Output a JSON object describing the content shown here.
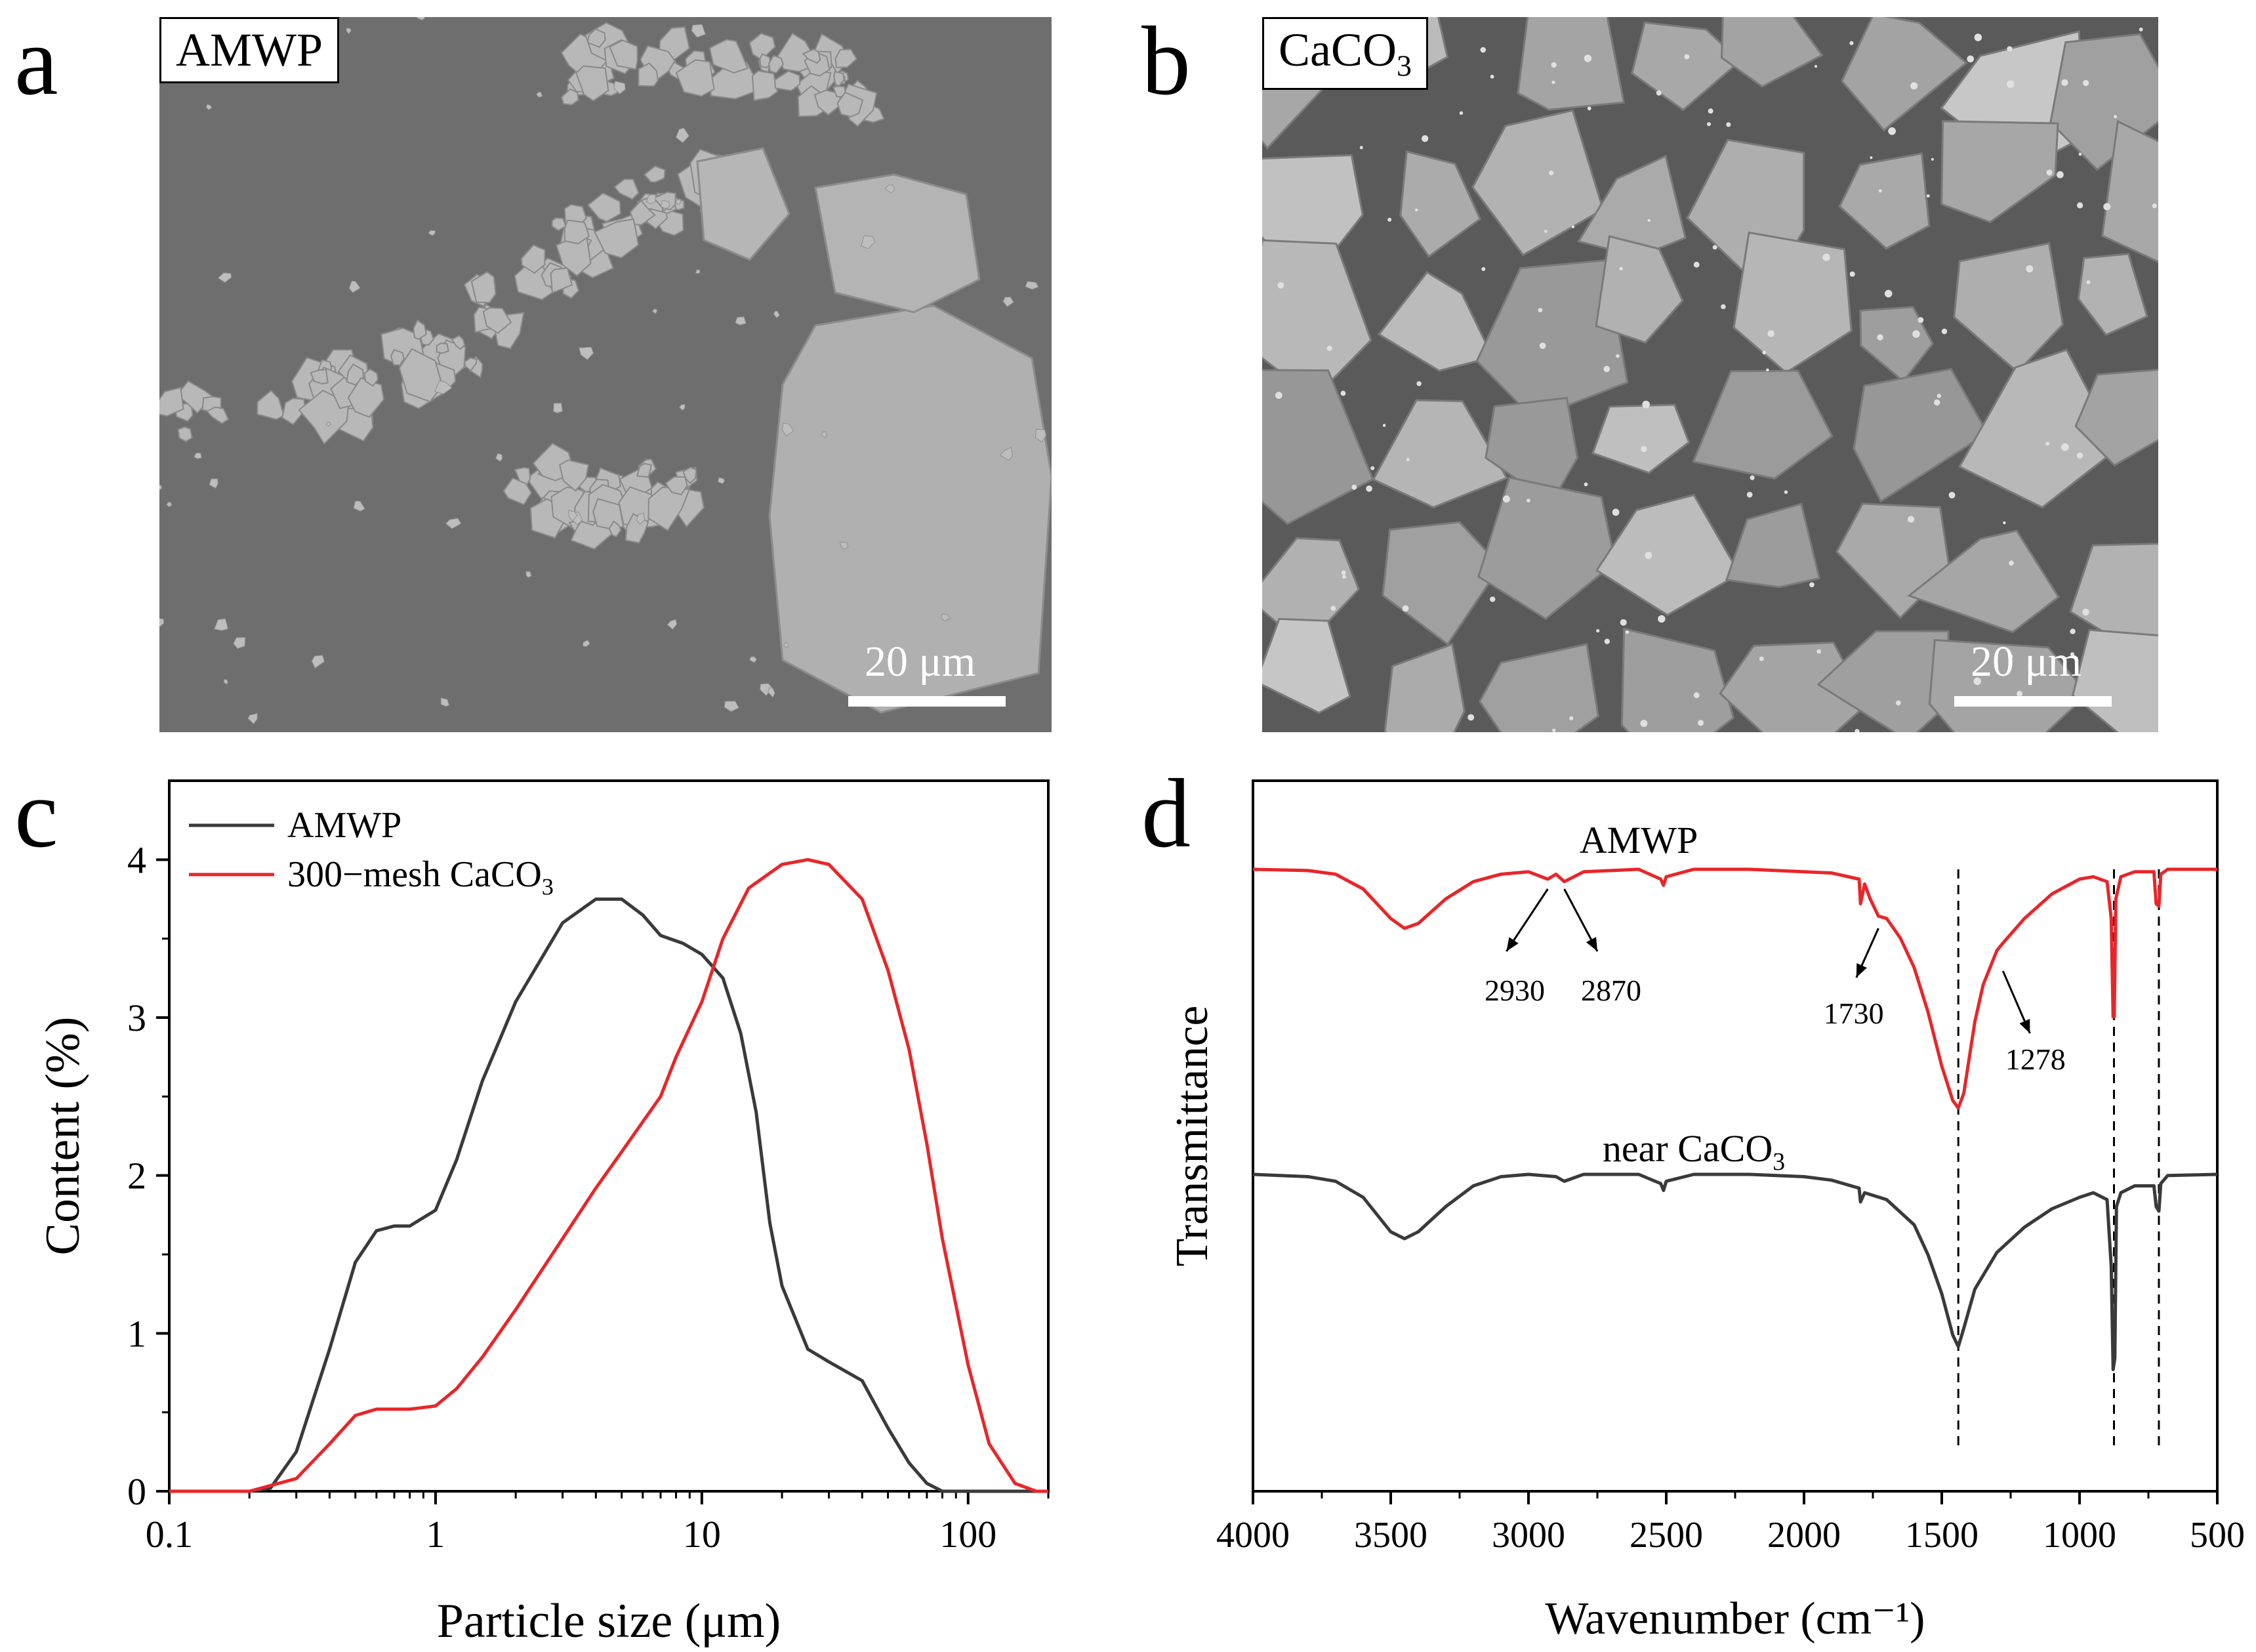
{
  "panels": {
    "a": {
      "letter": "a",
      "label": "AMWP",
      "scalebar": "20 μm"
    },
    "b": {
      "letter": "b",
      "label_main": "CaCO",
      "label_sub": "3",
      "scalebar": "20 μm"
    },
    "c": {
      "letter": "c"
    },
    "d": {
      "letter": "d"
    }
  },
  "colors": {
    "amwp": "#3a3a3a",
    "caco3": "#e8262a",
    "sem_bg": "#6e6e6e",
    "particle": "#b4b4b4"
  },
  "chart_data": [
    {
      "id": "c",
      "type": "line",
      "xlabel": "Particle size (μm)",
      "ylabel": "Content (%)",
      "xscale": "log",
      "xlim": [
        0.1,
        200
      ],
      "ylim": [
        0,
        4.5
      ],
      "xticks": [
        {
          "v": 0.1,
          "label": "0.1"
        },
        {
          "v": 1,
          "label": "1"
        },
        {
          "v": 10,
          "label": "10"
        },
        {
          "v": 100,
          "label": "100"
        }
      ],
      "yticks": [
        0,
        1,
        2,
        3,
        4
      ],
      "legend_position": "top-left",
      "series": [
        {
          "name": "AMWP",
          "color": "#3a3a3a",
          "points": [
            [
              0.1,
              0
            ],
            [
              0.2,
              0
            ],
            [
              0.24,
              0.02
            ],
            [
              0.3,
              0.25
            ],
            [
              0.4,
              0.9
            ],
            [
              0.5,
              1.45
            ],
            [
              0.6,
              1.65
            ],
            [
              0.7,
              1.68
            ],
            [
              0.8,
              1.68
            ],
            [
              1.0,
              1.78
            ],
            [
              1.2,
              2.1
            ],
            [
              1.5,
              2.6
            ],
            [
              2.0,
              3.1
            ],
            [
              3.0,
              3.6
            ],
            [
              4.0,
              3.75
            ],
            [
              5.0,
              3.75
            ],
            [
              6.0,
              3.65
            ],
            [
              7.0,
              3.52
            ],
            [
              8.5,
              3.47
            ],
            [
              10,
              3.4
            ],
            [
              12,
              3.25
            ],
            [
              14,
              2.9
            ],
            [
              16,
              2.4
            ],
            [
              18,
              1.7
            ],
            [
              20,
              1.3
            ],
            [
              25,
              0.9
            ],
            [
              30,
              0.82
            ],
            [
              40,
              0.7
            ],
            [
              50,
              0.4
            ],
            [
              60,
              0.18
            ],
            [
              70,
              0.05
            ],
            [
              80,
              0
            ],
            [
              200,
              0
            ]
          ]
        },
        {
          "name": "300−mesh CaCO",
          "name_sub": "3",
          "color": "#e8262a",
          "points": [
            [
              0.1,
              0
            ],
            [
              0.2,
              0
            ],
            [
              0.3,
              0.08
            ],
            [
              0.4,
              0.3
            ],
            [
              0.5,
              0.48
            ],
            [
              0.6,
              0.52
            ],
            [
              0.7,
              0.52
            ],
            [
              0.8,
              0.52
            ],
            [
              1.0,
              0.54
            ],
            [
              1.2,
              0.65
            ],
            [
              1.5,
              0.85
            ],
            [
              2.0,
              1.15
            ],
            [
              3.0,
              1.6
            ],
            [
              4.0,
              1.92
            ],
            [
              5.0,
              2.15
            ],
            [
              7.0,
              2.5
            ],
            [
              8.0,
              2.75
            ],
            [
              10,
              3.1
            ],
            [
              12,
              3.5
            ],
            [
              15,
              3.82
            ],
            [
              20,
              3.97
            ],
            [
              25,
              4.0
            ],
            [
              30,
              3.97
            ],
            [
              40,
              3.75
            ],
            [
              50,
              3.3
            ],
            [
              60,
              2.8
            ],
            [
              70,
              2.2
            ],
            [
              80,
              1.6
            ],
            [
              100,
              0.8
            ],
            [
              120,
              0.3
            ],
            [
              150,
              0.05
            ],
            [
              180,
              0
            ],
            [
              200,
              0
            ]
          ]
        }
      ]
    },
    {
      "id": "d",
      "type": "line",
      "xlabel": "Wavenumber (cm⁻¹)",
      "ylabel": "Transmittance",
      "xlim": [
        4000,
        500
      ],
      "xticks": [
        4000,
        3500,
        3000,
        2500,
        2000,
        1500,
        1000,
        500
      ],
      "series": [
        {
          "name": "AMWP",
          "color": "#e8262a",
          "points": [
            [
              4000,
              1.0
            ],
            [
              3800,
              0.995
            ],
            [
              3700,
              0.98
            ],
            [
              3600,
              0.92
            ],
            [
              3500,
              0.8
            ],
            [
              3450,
              0.76
            ],
            [
              3400,
              0.78
            ],
            [
              3300,
              0.88
            ],
            [
              3200,
              0.95
            ],
            [
              3100,
              0.98
            ],
            [
              3000,
              0.99
            ],
            [
              2930,
              0.96
            ],
            [
              2900,
              0.98
            ],
            [
              2870,
              0.95
            ],
            [
              2800,
              0.99
            ],
            [
              2600,
              1.0
            ],
            [
              2520,
              0.96
            ],
            [
              2510,
              0.935
            ],
            [
              2500,
              0.97
            ],
            [
              2400,
              1.0
            ],
            [
              2200,
              1.0
            ],
            [
              2000,
              0.99
            ],
            [
              1900,
              0.985
            ],
            [
              1800,
              0.96
            ],
            [
              1795,
              0.86
            ],
            [
              1780,
              0.94
            ],
            [
              1760,
              0.88
            ],
            [
              1730,
              0.81
            ],
            [
              1700,
              0.8
            ],
            [
              1650,
              0.72
            ],
            [
              1600,
              0.6
            ],
            [
              1550,
              0.42
            ],
            [
              1500,
              0.2
            ],
            [
              1460,
              0.06
            ],
            [
              1440,
              0.03
            ],
            [
              1420,
              0.09
            ],
            [
              1380,
              0.38
            ],
            [
              1350,
              0.53
            ],
            [
              1300,
              0.67
            ],
            [
              1278,
              0.7
            ],
            [
              1200,
              0.8
            ],
            [
              1100,
              0.9
            ],
            [
              1000,
              0.96
            ],
            [
              950,
              0.97
            ],
            [
              900,
              0.95
            ],
            [
              885,
              0.8
            ],
            [
              878,
              0.4
            ],
            [
              874,
              0.4
            ],
            [
              868,
              0.88
            ],
            [
              850,
              0.97
            ],
            [
              800,
              0.99
            ],
            [
              730,
              0.99
            ],
            [
              722,
              0.86
            ],
            [
              712,
              0.85
            ],
            [
              705,
              0.98
            ],
            [
              680,
              1.0
            ],
            [
              500,
              1.0
            ]
          ]
        },
        {
          "name": "near CaCO",
          "name_sub": "3",
          "color": "#3a3a3a",
          "points": [
            [
              4000,
              1.0
            ],
            [
              3800,
              0.99
            ],
            [
              3700,
              0.97
            ],
            [
              3600,
              0.9
            ],
            [
              3500,
              0.75
            ],
            [
              3450,
              0.72
            ],
            [
              3400,
              0.75
            ],
            [
              3300,
              0.86
            ],
            [
              3200,
              0.95
            ],
            [
              3100,
              0.99
            ],
            [
              3000,
              1.0
            ],
            [
              2900,
              0.99
            ],
            [
              2870,
              0.97
            ],
            [
              2800,
              1.0
            ],
            [
              2600,
              1.0
            ],
            [
              2520,
              0.96
            ],
            [
              2510,
              0.93
            ],
            [
              2500,
              0.97
            ],
            [
              2400,
              1.0
            ],
            [
              2200,
              1.0
            ],
            [
              2000,
              0.99
            ],
            [
              1900,
              0.975
            ],
            [
              1800,
              0.94
            ],
            [
              1795,
              0.88
            ],
            [
              1780,
              0.92
            ],
            [
              1700,
              0.89
            ],
            [
              1600,
              0.78
            ],
            [
              1550,
              0.65
            ],
            [
              1500,
              0.48
            ],
            [
              1460,
              0.3
            ],
            [
              1440,
              0.25
            ],
            [
              1420,
              0.33
            ],
            [
              1380,
              0.5
            ],
            [
              1300,
              0.66
            ],
            [
              1200,
              0.77
            ],
            [
              1100,
              0.85
            ],
            [
              1000,
              0.9
            ],
            [
              950,
              0.92
            ],
            [
              900,
              0.89
            ],
            [
              885,
              0.6
            ],
            [
              878,
              0.15
            ],
            [
              872,
              0.2
            ],
            [
              866,
              0.86
            ],
            [
              850,
              0.92
            ],
            [
              800,
              0.95
            ],
            [
              730,
              0.95
            ],
            [
              722,
              0.86
            ],
            [
              712,
              0.84
            ],
            [
              705,
              0.96
            ],
            [
              680,
              0.995
            ],
            [
              500,
              1.0
            ]
          ]
        }
      ],
      "series_labels": [
        {
          "text": "AMWP",
          "series": 0
        },
        {
          "text": "near CaCO",
          "sub": "3",
          "series": 1
        }
      ],
      "annotations": [
        "2930",
        "2870",
        "1730",
        "1278"
      ],
      "dashed_lines": [
        1440,
        875,
        712
      ]
    }
  ]
}
